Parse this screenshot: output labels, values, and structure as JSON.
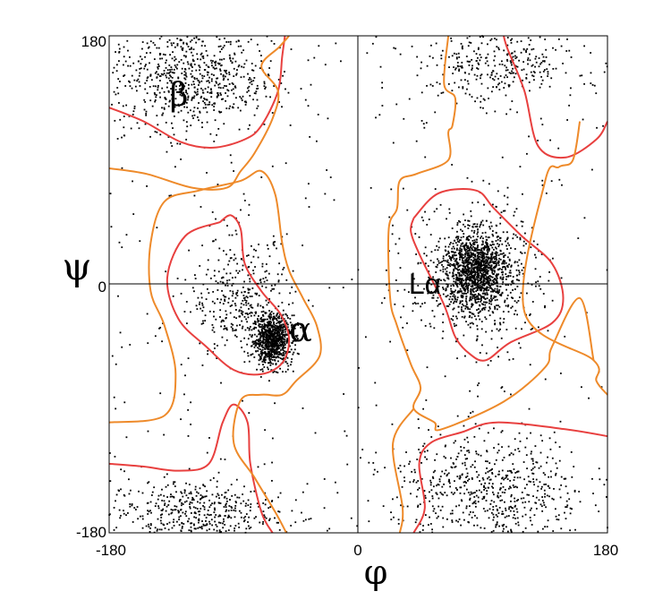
{
  "chart_data": {
    "type": "scatter",
    "title": "",
    "xlabel": "φ",
    "ylabel": "ψ",
    "xlim": [
      -180,
      180
    ],
    "ylim": [
      -180,
      180
    ],
    "x_ticks": [
      "-180",
      "0",
      "180"
    ],
    "y_ticks": [
      "180",
      "0",
      "-180"
    ],
    "grid": false,
    "crosshair_at_zero": true,
    "colors": {
      "points": "#000000",
      "inner_contour": "#e8403f",
      "outer_contour": "#ee8a2a",
      "axes": "#000000"
    },
    "annotations": [
      {
        "text": "β",
        "phi": -128,
        "psi": 140
      },
      {
        "text": "α",
        "phi": -40,
        "psi": -35
      },
      {
        "text": "Lα",
        "phi": 47,
        "psi": 0
      }
    ],
    "clusters": [
      {
        "region": "alpha-core",
        "phi_mean": -62,
        "psi_mean": -40,
        "phi_sd": 7,
        "psi_sd": 9,
        "points": 900
      },
      {
        "region": "alpha-diffuse",
        "phi_mean": -85,
        "psi_mean": -10,
        "phi_sd": 18,
        "psi_sd": 22,
        "points": 350
      },
      {
        "region": "left-alpha-core",
        "phi_mean": 85,
        "psi_mean": 10,
        "phi_sd": 12,
        "psi_sd": 14,
        "points": 1300
      },
      {
        "region": "left-alpha-diffuse",
        "phi_mean": 85,
        "psi_mean": 5,
        "phi_sd": 25,
        "psi_sd": 28,
        "points": 400
      },
      {
        "region": "beta",
        "phi_mean": -120,
        "psi_mean": 150,
        "phi_sd": 30,
        "psi_sd": 20,
        "points": 700
      },
      {
        "region": "beta-wrap",
        "phi_mean": -120,
        "psi_mean": -165,
        "phi_sd": 30,
        "psi_sd": 12,
        "points": 450
      },
      {
        "region": "lower-right",
        "phi_mean": 95,
        "psi_mean": -150,
        "phi_sd": 35,
        "psi_sd": 22,
        "points": 650
      },
      {
        "region": "upper-right",
        "phi_mean": 100,
        "psi_mean": 160,
        "phi_sd": 30,
        "psi_sd": 15,
        "points": 350
      },
      {
        "region": "background",
        "phi_mean": 0,
        "psi_mean": 0,
        "phi_sd": 0,
        "psi_sd": 0,
        "points": 350
      }
    ],
    "contours": [
      {
        "level": "inner",
        "color": "#e8403f",
        "paths": [
          [
            [
              -180,
              128
            ],
            [
              -155,
              118
            ],
            [
              -128,
              103
            ],
            [
              -105,
              99
            ],
            [
              -82,
              105
            ],
            [
              -70,
              115
            ],
            [
              -58,
              140
            ],
            [
              -55,
              165
            ],
            [
              -53,
              180
            ]
          ],
          [
            [
              -100,
              45
            ],
            [
              -125,
              35
            ],
            [
              -138,
              5
            ],
            [
              -130,
              -25
            ],
            [
              -110,
              -45
            ],
            [
              -90,
              -62
            ],
            [
              -70,
              -65
            ],
            [
              -55,
              -57
            ],
            [
              -50,
              -40
            ],
            [
              -56,
              -22
            ],
            [
              -70,
              -5
            ],
            [
              -82,
              15
            ],
            [
              -85,
              40
            ],
            [
              -92,
              50
            ],
            [
              -100,
              45
            ]
          ],
          [
            [
              40,
              48
            ],
            [
              58,
              66
            ],
            [
              85,
              68
            ],
            [
              98,
              55
            ],
            [
              118,
              35
            ],
            [
              140,
              15
            ],
            [
              148,
              -10
            ],
            [
              140,
              -28
            ],
            [
              110,
              -42
            ],
            [
              92,
              -55
            ],
            [
              80,
              -50
            ],
            [
              70,
              -38
            ],
            [
              62,
              -15
            ],
            [
              45,
              20
            ],
            [
              38,
              38
            ],
            [
              40,
              48
            ]
          ],
          [
            [
              105,
              180
            ],
            [
              108,
              170
            ],
            [
              120,
              140
            ],
            [
              130,
              100
            ],
            [
              150,
              92
            ],
            [
              172,
              105
            ],
            [
              180,
              118
            ]
          ],
          [
            [
              -180,
              -130
            ],
            [
              -155,
              -132
            ],
            [
              -130,
              -135
            ],
            [
              -108,
              -130
            ],
            [
              -98,
              -100
            ],
            [
              -90,
              -87
            ],
            [
              -80,
              -100
            ],
            [
              -78,
              -130
            ],
            [
              -70,
              -165
            ],
            [
              -62,
              -180
            ]
          ],
          [
            [
              40,
              -180
            ],
            [
              48,
              -162
            ],
            [
              44,
              -130
            ],
            [
              52,
              -115
            ],
            [
              75,
              -107
            ],
            [
              100,
              -100
            ],
            [
              150,
              -105
            ],
            [
              180,
              -110
            ]
          ]
        ]
      },
      {
        "level": "outer",
        "color": "#ee8a2a",
        "paths": [
          [
            [
              -180,
              84
            ],
            [
              -153,
              80
            ],
            [
              -120,
              70
            ],
            [
              -95,
              70
            ],
            [
              -85,
              82
            ],
            [
              -75,
              95
            ],
            [
              -62,
              120
            ],
            [
              -58,
              140
            ],
            [
              -70,
              158
            ],
            [
              -57,
              172
            ],
            [
              -50,
              180
            ]
          ],
          [
            [
              -180,
              -100
            ],
            [
              -140,
              -95
            ],
            [
              -132,
              -65
            ],
            [
              -140,
              -30
            ],
            [
              -150,
              -5
            ],
            [
              -150,
              30
            ],
            [
              -140,
              60
            ],
            [
              -115,
              68
            ],
            [
              -85,
              75
            ],
            [
              -70,
              82
            ],
            [
              -60,
              65
            ],
            [
              -55,
              30
            ],
            [
              -50,
              10
            ],
            [
              -40,
              -10
            ],
            [
              -30,
              -30
            ],
            [
              -28,
              -52
            ],
            [
              -45,
              -70
            ],
            [
              -55,
              -80
            ],
            [
              -70,
              -80
            ],
            [
              -85,
              -84
            ],
            [
              -90,
              -115
            ],
            [
              -75,
              -140
            ],
            [
              -60,
              -165
            ],
            [
              -52,
              -180
            ]
          ],
          [
            [
              160,
              118
            ],
            [
              155,
              90
            ],
            [
              145,
              85
            ],
            [
              135,
              75
            ],
            [
              120,
              -20
            ],
            [
              170,
              -55
            ],
            [
              172,
              -70
            ],
            [
              180,
              -80
            ]
          ],
          [
            [
              65,
              180
            ],
            [
              62,
              145
            ],
            [
              70,
              135
            ],
            [
              68,
              115
            ],
            [
              65,
              110
            ],
            [
              65,
              90
            ],
            [
              42,
              80
            ],
            [
              30,
              75
            ],
            [
              28,
              55
            ],
            [
              22,
              40
            ],
            [
              23,
              -10
            ],
            [
              28,
              -30
            ],
            [
              38,
              -58
            ],
            [
              45,
              -75
            ],
            [
              40,
              -90
            ],
            [
              55,
              -100
            ],
            [
              60,
              -105
            ],
            [
              105,
              -85
            ],
            [
              135,
              -60
            ],
            [
              140,
              -45
            ],
            [
              160,
              -10
            ],
            [
              170,
              -55
            ]
          ],
          [
            [
              30,
              -180
            ],
            [
              32,
              -162
            ],
            [
              25,
              -115
            ],
            [
              40,
              -90
            ]
          ]
        ]
      }
    ]
  }
}
